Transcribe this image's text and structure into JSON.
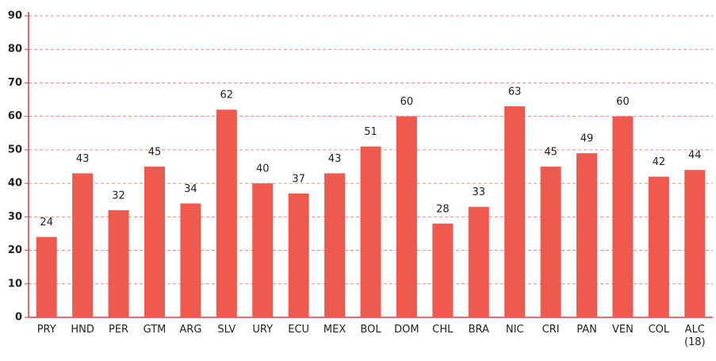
{
  "chart_data": {
    "type": "bar",
    "categories": [
      "PRY",
      "HND",
      "PER",
      "GTM",
      "ARG",
      "SLV",
      "URY",
      "ECU",
      "MEX",
      "BOL",
      "DOM",
      "CHL",
      "BRA",
      "NIC",
      "CRI",
      "PAN",
      "VEN",
      "COL",
      "ALC (18)"
    ],
    "values": [
      24,
      43,
      32,
      45,
      34,
      62,
      40,
      37,
      43,
      51,
      60,
      28,
      33,
      63,
      45,
      49,
      60,
      42,
      44
    ],
    "color": "#f0594d",
    "ylim": [
      0,
      90
    ],
    "yticks": [
      0,
      10,
      20,
      30,
      40,
      50,
      60,
      70,
      80,
      90
    ],
    "grid": true
  }
}
